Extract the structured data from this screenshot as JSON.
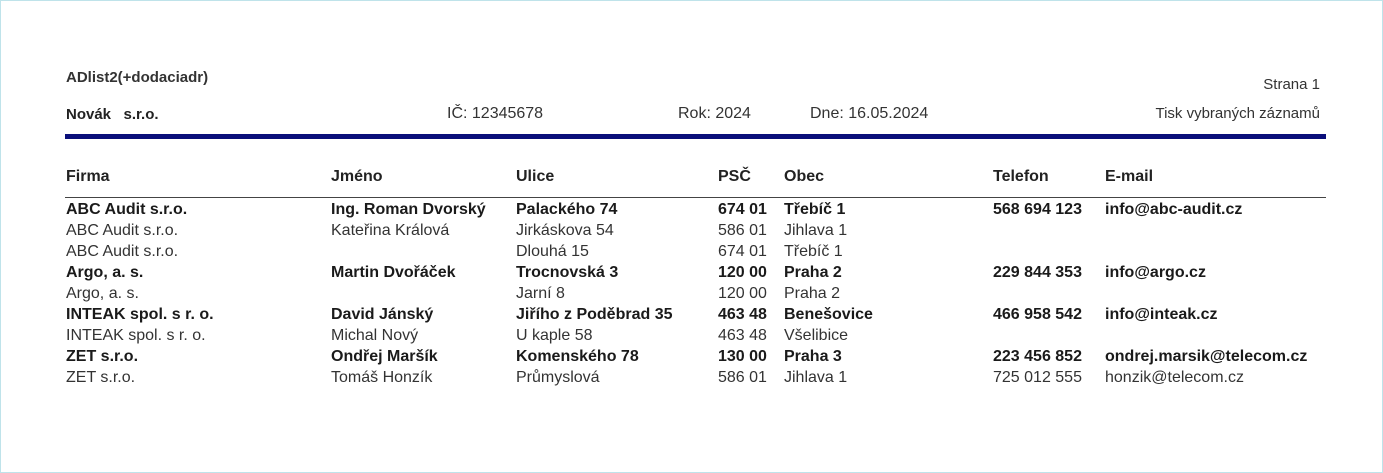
{
  "report": {
    "name": "ADlist2(+dodaciadr)",
    "page_label": "Strana 1",
    "company": "Novák   s.r.o.",
    "ico": "IČ: 12345678",
    "year": "Rok: 2024",
    "date": "Dne: 16.05.2024",
    "subtitle": "Tisk vybraných záznamů"
  },
  "columns": {
    "firma": "Firma",
    "jmeno": "Jméno",
    "ulice": "Ulice",
    "psc": "PSČ",
    "obec": "Obec",
    "telefon": "Telefon",
    "email": "E-mail"
  },
  "rows": [
    {
      "bold": true,
      "firma": "ABC Audit s.r.o.",
      "jmeno": "Ing. Roman Dvorský",
      "ulice": "Palackého 74",
      "psc": "674 01",
      "obec": "Třebíč 1",
      "telefon": "568 694 123",
      "email": "info@abc-audit.cz"
    },
    {
      "bold": false,
      "firma": "ABC Audit s.r.o.",
      "jmeno": "Kateřina Králová",
      "ulice": "Jirkáskova 54",
      "psc": "586 01",
      "obec": "Jihlava 1",
      "telefon": "",
      "email": ""
    },
    {
      "bold": false,
      "firma": "ABC Audit s.r.o.",
      "jmeno": "",
      "ulice": "Dlouhá 15",
      "psc": "674 01",
      "obec": "Třebíč 1",
      "telefon": "",
      "email": ""
    },
    {
      "bold": true,
      "firma": "Argo, a. s.",
      "jmeno": "Martin Dvořáček",
      "ulice": "Trocnovská 3",
      "psc": "120 00",
      "obec": "Praha 2",
      "telefon": "229 844 353",
      "email": "info@argo.cz"
    },
    {
      "bold": false,
      "firma": "Argo, a. s.",
      "jmeno": "",
      "ulice": "Jarní 8",
      "psc": "120 00",
      "obec": "Praha 2",
      "telefon": "",
      "email": ""
    },
    {
      "bold": true,
      "firma": "INTEAK spol. s r. o.",
      "jmeno": "David Jánský",
      "ulice": "Jiřího z Poděbrad 35",
      "psc": "463 48",
      "obec": "Benešovice",
      "telefon": "466 958 542",
      "email": "info@inteak.cz"
    },
    {
      "bold": false,
      "firma": "INTEAK spol. s r. o.",
      "jmeno": "Michal Nový",
      "ulice": "U kaple 58",
      "psc": "463 48",
      "obec": "Všelibice",
      "telefon": "",
      "email": ""
    },
    {
      "bold": true,
      "firma": "ZET s.r.o.",
      "jmeno": "Ondřej Maršík",
      "ulice": "Komenského 78",
      "psc": "130 00",
      "obec": "Praha 3",
      "telefon": "223 456 852",
      "email": "ondrej.marsik@telecom.cz"
    },
    {
      "bold": false,
      "firma": "ZET s.r.o.",
      "jmeno": "Tomáš Honzík",
      "ulice": "Průmyslová",
      "psc": "586 01",
      "obec": "Jihlava 1",
      "telefon": "725 012 555",
      "email": "honzik@telecom.cz"
    }
  ]
}
